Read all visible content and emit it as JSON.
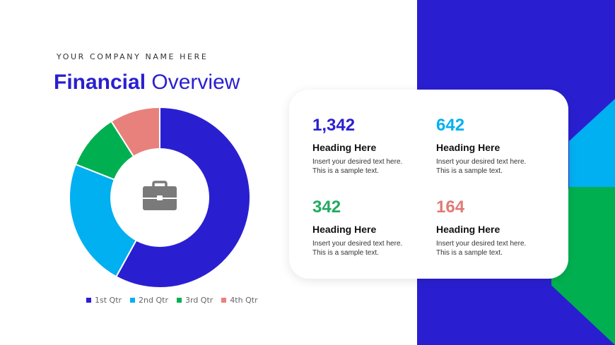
{
  "header": {
    "company": "YOUR COMPANY NAME HERE",
    "title_bold": "Financial",
    "title_rest": "Overview"
  },
  "center_icon": "briefcase-icon",
  "colors": {
    "q1": "#2a1fd0",
    "q2": "#00b0f0",
    "q3": "#00b050",
    "q4": "#e8817c",
    "accent_title": "#2a1fd0"
  },
  "chart_data": {
    "type": "pie",
    "donut": true,
    "categories": [
      "1st Qtr",
      "2nd Qtr",
      "3rd Qtr",
      "4th Qtr"
    ],
    "values": [
      58,
      23,
      10,
      9
    ],
    "legend_position": "bottom"
  },
  "stats": [
    {
      "value": "1,342",
      "heading": "Heading Here",
      "body": "Insert your desired text here. This is a sample text.",
      "color": "#2a1fd0"
    },
    {
      "value": "642",
      "heading": "Heading Here",
      "body": "Insert your desired text here. This is a sample text.",
      "color": "#00b0f0"
    },
    {
      "value": "342",
      "heading": "Heading Here",
      "body": "Insert your desired text here. This is a sample text.",
      "color": "#22aa60"
    },
    {
      "value": "164",
      "heading": "Heading Here",
      "body": "Insert your desired text here. This is a sample text.",
      "color": "#e07a76"
    }
  ]
}
